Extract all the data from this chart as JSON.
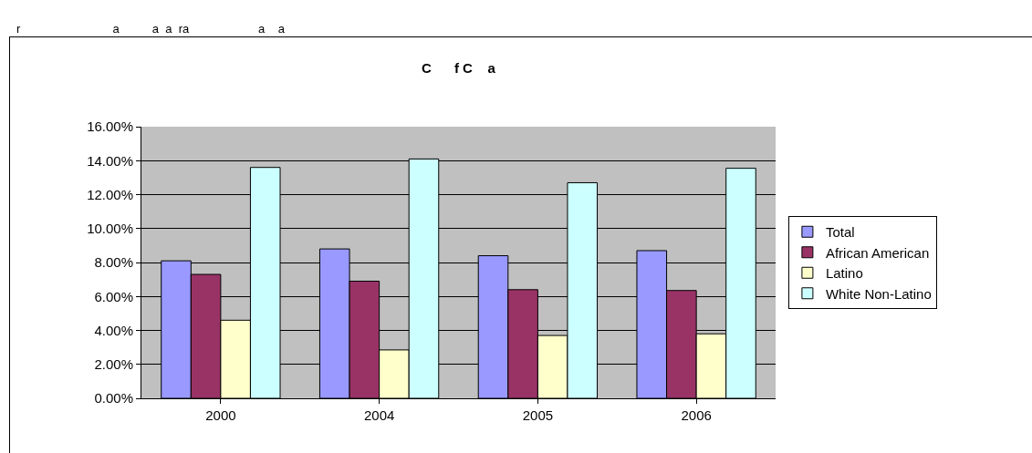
{
  "chart_data": {
    "type": "bar",
    "title": "C      f C    a",
    "annotations": [
      "r                            a          a  a  ra                     a    a"
    ],
    "categories": [
      "2000",
      "2004",
      "2005",
      "2006"
    ],
    "series": [
      {
        "name": "Total",
        "color": "#9999ff",
        "values": [
          8.1,
          8.8,
          8.4,
          8.7
        ]
      },
      {
        "name": "African American",
        "color": "#993366",
        "values": [
          7.3,
          6.9,
          6.4,
          6.35
        ]
      },
      {
        "name": "Latino",
        "color": "#ffffcc",
        "values": [
          4.6,
          2.85,
          3.7,
          3.8
        ]
      },
      {
        "name": "White Non-Latino",
        "color": "#ccffff",
        "values": [
          13.6,
          14.1,
          12.7,
          13.55
        ]
      }
    ],
    "ylim": [
      0,
      16
    ],
    "yticks": [
      {
        "value": 0,
        "label": "0.00%"
      },
      {
        "value": 2,
        "label": "2.00%"
      },
      {
        "value": 4,
        "label": "4.00%"
      },
      {
        "value": 6,
        "label": "6.00%"
      },
      {
        "value": 8,
        "label": "8.00%"
      },
      {
        "value": 10,
        "label": "10.00%"
      },
      {
        "value": 12,
        "label": "12.00%"
      },
      {
        "value": 14,
        "label": "14.00%"
      },
      {
        "value": 16,
        "label": "16.00%"
      }
    ],
    "grid": "y",
    "legend": "right"
  }
}
